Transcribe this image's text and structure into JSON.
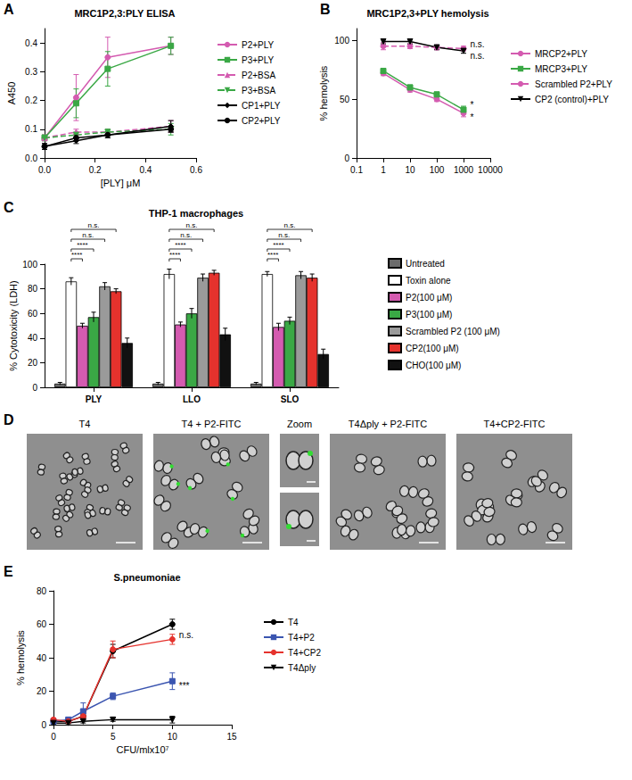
{
  "chart_data": [
    {
      "panel": "A",
      "type": "line",
      "title": "MRC1P2,3:PLY ELISA",
      "x_label": "[PLY] μM",
      "y_label": "A450",
      "xlim": [
        0,
        0.6
      ],
      "xticks": [
        {
          "value": 0,
          "label": "0.0"
        },
        0.2,
        0.4,
        0.6
      ],
      "ylim": [
        0,
        0.45
      ],
      "yticks": [
        {
          "value": 0,
          "label": "0.0"
        },
        0.1,
        0.2,
        0.3,
        0.4
      ],
      "grid": false,
      "legend": "right",
      "x": [
        0,
        0.125,
        0.25,
        0.5
      ],
      "series": [
        {
          "name": "P2+PLY",
          "color": "#d45bb0",
          "marker": "circle",
          "line_style": "solid",
          "values": [
            0.07,
            0.21,
            0.35,
            0.39
          ],
          "errors": [
            0.01,
            0.08,
            0.07,
            0.03
          ]
        },
        {
          "name": "P3+PLY",
          "color": "#3aa845",
          "marker": "square",
          "line_style": "solid",
          "values": [
            0.07,
            0.19,
            0.31,
            0.39
          ],
          "errors": [
            0.01,
            0.05,
            0.06,
            0.03
          ]
        },
        {
          "name": "P2+BSA",
          "color": "#d45bb0",
          "marker": "triangle",
          "line_style": "dashed",
          "values": [
            0.07,
            0.09,
            0.09,
            0.11
          ],
          "errors": [
            0.01,
            0.01,
            0.01,
            0.02
          ]
        },
        {
          "name": "P3+BSA",
          "color": "#3aa845",
          "marker": "triangle-down",
          "line_style": "dashed",
          "values": [
            0.07,
            0.08,
            0.09,
            0.1
          ],
          "errors": [
            0.01,
            0.01,
            0.01,
            0.02
          ]
        },
        {
          "name": "CP1+PLY",
          "color": "#000000",
          "marker": "diamond",
          "line_style": "solid",
          "values": [
            0.04,
            0.06,
            0.08,
            0.11
          ],
          "errors": [
            0.01,
            0.01,
            0.01,
            0.02
          ]
        },
        {
          "name": "CP2+PLY",
          "color": "#000000",
          "marker": "circle",
          "line_style": "solid",
          "values": [
            0.04,
            0.07,
            0.08,
            0.1
          ],
          "errors": [
            0.01,
            0.01,
            0.01,
            0.01
          ]
        }
      ]
    },
    {
      "panel": "B",
      "type": "line",
      "title": "MRC1P2,3+PLY hemolysis",
      "y_label": "% hemolysis",
      "log": "x",
      "xlim": [
        0.1,
        10000
      ],
      "xticks": [
        0.1,
        1,
        10,
        100,
        1000,
        10000
      ],
      "ylim": [
        0,
        110
      ],
      "yticks": [
        0,
        50,
        100
      ],
      "grid": false,
      "legend": "right",
      "x": [
        1,
        10,
        100,
        1000
      ],
      "series": [
        {
          "name": "MRCP2+PLY",
          "color": "#d45bb0",
          "marker": "circle",
          "line_style": "solid",
          "values": [
            72,
            58,
            50,
            38
          ],
          "errors": [
            2,
            2,
            2,
            3
          ]
        },
        {
          "name": "MRCP3+PLY",
          "color": "#3aa845",
          "marker": "square",
          "line_style": "solid",
          "values": [
            74,
            60,
            54,
            41
          ],
          "errors": [
            2,
            2,
            2,
            3
          ]
        },
        {
          "name": "Scrambled P2+PLY",
          "color": "#d45bb0",
          "marker": "circle",
          "line_style": "dashed",
          "values": [
            95,
            95,
            94,
            93
          ],
          "errors": [
            3,
            2,
            2,
            2
          ]
        },
        {
          "name": "CP2 (control)+PLY",
          "color": "#000000",
          "marker": "triangle-down",
          "line_style": "solid",
          "values": [
            99,
            99,
            94,
            91
          ],
          "errors": [
            2,
            2,
            2,
            2
          ]
        }
      ],
      "annotations": [
        {
          "text": "*",
          "series": "MRCP3+PLY"
        },
        {
          "text": "*",
          "series": "MRCP2+PLY"
        },
        {
          "text": "n.s.",
          "series": "Scrambled P2+PLY"
        },
        {
          "text": "n.s.",
          "series": "CP2 (control)+PLY"
        }
      ]
    },
    {
      "panel": "C",
      "type": "bar",
      "title": "THP-1 macrophages",
      "y_label": "% Cytotoxicity (LDH)",
      "categories": [
        "PLY",
        "LLO",
        "SLO"
      ],
      "ylim": [
        0,
        100
      ],
      "yticks": [
        0,
        20,
        40,
        60,
        80,
        100
      ],
      "grid": false,
      "legend": "right",
      "series": [
        {
          "name": "Untreated",
          "color": "#6b6b6b",
          "values": [
            3,
            3,
            3
          ],
          "errors": [
            1,
            1,
            1
          ]
        },
        {
          "name": "Toxin alone",
          "color": "#ffffff",
          "values": [
            86,
            92,
            92
          ],
          "errors": [
            3,
            4,
            2
          ]
        },
        {
          "name": "P2(100 μM)",
          "color": "#d45bb0",
          "values": [
            50,
            51,
            49
          ],
          "errors": [
            2,
            2,
            3
          ]
        },
        {
          "name": "P3(100 μM)",
          "color": "#3aa845",
          "values": [
            57,
            60,
            54
          ],
          "errors": [
            4,
            4,
            3
          ]
        },
        {
          "name": "Scrambled P2 (100 μM)",
          "color": "#9a9a9a",
          "values": [
            82,
            89,
            91
          ],
          "errors": [
            3,
            3,
            3
          ]
        },
        {
          "name": "CP2(100 μM)",
          "color": "#e5322d",
          "values": [
            78,
            93,
            89
          ],
          "errors": [
            2,
            2,
            3
          ]
        },
        {
          "name": "CHO(100 μM)",
          "color": "#111111",
          "values": [
            36,
            43,
            27
          ],
          "errors": [
            4,
            5,
            4
          ]
        }
      ],
      "comparisons": [
        {
          "from": "Toxin alone",
          "to": "P2(100 μM)",
          "label": "****"
        },
        {
          "from": "Toxin alone",
          "to": "P3(100 μM)",
          "label": "****"
        },
        {
          "from": "Toxin alone",
          "to": "Scrambled P2 (100 μM)",
          "label": "n.s."
        },
        {
          "from": "Toxin alone",
          "to": "CP2(100 μM)",
          "label": "n.s."
        }
      ]
    },
    {
      "panel": "E",
      "type": "line",
      "title": "S.pneumoniae",
      "x_label": "CFU/mlx10⁷",
      "y_label": "% hemolysis",
      "xlim": [
        0,
        15
      ],
      "xticks": [
        0,
        5,
        10,
        15
      ],
      "ylim": [
        0,
        80
      ],
      "yticks": [
        0,
        20,
        40,
        60,
        80
      ],
      "grid": false,
      "legend": "right",
      "x": [
        0,
        1.25,
        2.5,
        5,
        10
      ],
      "series": [
        {
          "name": "T4",
          "color": "#000000",
          "marker": "circle",
          "line_style": "solid",
          "values": [
            2,
            2,
            5,
            44,
            60
          ],
          "errors": [
            1,
            1,
            1,
            4,
            3
          ]
        },
        {
          "name": "T4+P2",
          "color": "#3b55b0",
          "marker": "square",
          "line_style": "solid",
          "values": [
            2,
            3,
            8,
            17,
            26
          ],
          "errors": [
            1,
            1,
            5,
            2,
            5
          ]
        },
        {
          "name": "T4+CP2",
          "color": "#e5322d",
          "marker": "circle",
          "line_style": "solid",
          "values": [
            3,
            2,
            5,
            45,
            51
          ],
          "errors": [
            1,
            1,
            1,
            5,
            3
          ]
        },
        {
          "name": "T4Δply",
          "color": "#000000",
          "marker": "triangle-down",
          "line_style": "solid",
          "values": [
            1,
            1,
            2,
            3,
            3
          ],
          "errors": [
            1,
            1,
            1,
            1,
            2
          ]
        }
      ],
      "annotations": [
        {
          "text": "n.s.",
          "series": "T4+CP2"
        },
        {
          "text": "***",
          "series": "T4+P2"
        }
      ]
    }
  ],
  "image_panel": {
    "panel": "D",
    "images": [
      {
        "label": "T4"
      },
      {
        "label": "T4 + P2-FITC"
      },
      {
        "label": "Zoom"
      },
      {
        "label": "T4Δply + P2-FITC"
      },
      {
        "label": "T4+CP2-FITC"
      }
    ]
  }
}
